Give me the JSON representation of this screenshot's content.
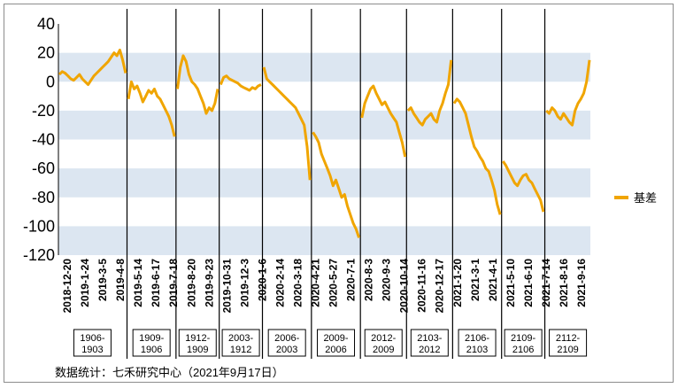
{
  "colors": {
    "band": "#dce6f1",
    "line": "#f0a500",
    "axis": "#000000"
  },
  "legend": {
    "label": "基差"
  },
  "source": "数据统计：七禾研究中心（2021年9月17日）",
  "contracts": [
    "1906-1903",
    "1909-1906",
    "1912-1909",
    "2003-1912",
    "2006-2003",
    "2009-2006",
    "2012-2009",
    "2103-2012",
    "2106-2103",
    "2109-2106",
    "2112-2109"
  ],
  "chart_data": {
    "type": "line",
    "title": "",
    "xlabel": "",
    "ylabel": "",
    "ylim": [
      -120,
      40
    ],
    "yticks": [
      40,
      20,
      0,
      -20,
      -40,
      -60,
      -80,
      -100,
      -120
    ],
    "x_ticks": [
      "2018-12-20",
      "2019-1-24",
      "2019-3-5",
      "2019-4-8",
      "2019-5-14",
      "2019-6-17",
      "2019-7-18",
      "2019-8-20",
      "2019-9-23",
      "2019-10-31",
      "2019-12-3",
      "2020-1-6",
      "2020-2-14",
      "2020-3-18",
      "2020-4-21",
      "2020-5-27",
      "2020-7-1",
      "2020-8-3",
      "2020-9-3",
      "2020-10-14",
      "2020-11-16",
      "2020-12-17",
      "2021-1-20",
      "2021-3-1",
      "2021-4-1",
      "2021-5-10",
      "2021-6-10",
      "2021-7-14",
      "2021-8-16",
      "2021-9-16"
    ],
    "series": [
      {
        "name": "基差",
        "segments": [
          {
            "contract": "1906-1903",
            "values": [
              5,
              7,
              6,
              4,
              2,
              1,
              3,
              5,
              2,
              0,
              -2,
              1,
              4,
              6,
              8,
              10,
              12,
              14,
              17,
              20,
              18,
              22,
              15,
              6
            ]
          },
          {
            "contract": "1909-1906",
            "values": [
              -12,
              0,
              -5,
              -3,
              -8,
              -14,
              -10,
              -6,
              -8,
              -5,
              -10,
              -12,
              -16,
              -20,
              -24,
              -30,
              -38
            ]
          },
          {
            "contract": "1912-1909",
            "values": [
              -5,
              10,
              18,
              14,
              5,
              0,
              -2,
              -5,
              -10,
              -15,
              -22,
              -18,
              -20,
              -15,
              -5
            ]
          },
          {
            "contract": "2003-1912",
            "values": [
              -2,
              3,
              4,
              2,
              1,
              0,
              -1,
              -3,
              -4,
              -5,
              -6,
              -4,
              -5,
              -3,
              -2
            ]
          },
          {
            "contract": "2006-2003",
            "values": [
              10,
              2,
              0,
              -2,
              -4,
              -6,
              -8,
              -10,
              -12,
              -14,
              -16,
              -18,
              -22,
              -26,
              -30,
              -45,
              -68
            ]
          },
          {
            "contract": "2009-2006",
            "values": [
              -35,
              -38,
              -42,
              -50,
              -55,
              -60,
              -65,
              -72,
              -68,
              -74,
              -80,
              -78,
              -86,
              -92,
              -98,
              -102,
              -108
            ]
          },
          {
            "contract": "2012-2009",
            "values": [
              -25,
              -15,
              -10,
              -5,
              -3,
              -8,
              -12,
              -16,
              -14,
              -18,
              -22,
              -25,
              -28,
              -35,
              -42,
              -52
            ]
          },
          {
            "contract": "2103-2012",
            "values": [
              -20,
              -18,
              -22,
              -25,
              -28,
              -30,
              -26,
              -24,
              -22,
              -26,
              -28,
              -20,
              -15,
              -8,
              -2,
              15
            ]
          },
          {
            "contract": "2106-2103",
            "values": [
              -15,
              -12,
              -14,
              -18,
              -22,
              -30,
              -38,
              -45,
              -48,
              -52,
              -55,
              -60,
              -62,
              -68,
              -75,
              -85,
              -92
            ]
          },
          {
            "contract": "2109-2106",
            "values": [
              -55,
              -58,
              -62,
              -66,
              -70,
              -72,
              -68,
              -65,
              -64,
              -68,
              -70,
              -74,
              -78,
              -82,
              -90
            ]
          },
          {
            "contract": "2112-2109",
            "values": [
              -20,
              -22,
              -18,
              -20,
              -24,
              -26,
              -22,
              -25,
              -28,
              -30,
              -20,
              -15,
              -12,
              -8,
              0,
              15
            ]
          }
        ]
      }
    ]
  }
}
